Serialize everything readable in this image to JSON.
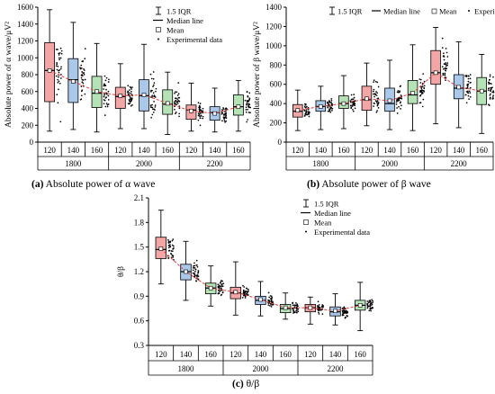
{
  "captions": {
    "a": {
      "tag": "(a)",
      "text": "Absolute power of α wave"
    },
    "b": {
      "tag": "(b)",
      "text": "Absolute power of β wave"
    },
    "c": {
      "tag": "(c)",
      "text": "θ/β"
    }
  },
  "legend": {
    "iqr": "1.5 IQR",
    "median": "Median line",
    "mean": "Mean",
    "data": "Experimental data"
  },
  "colors": {
    "red": "#f4a6a6",
    "blue": "#a9c8ea",
    "green": "#b6e3b6",
    "trend": "#e83a3a"
  },
  "chart_data": [
    {
      "id": "a",
      "type": "box",
      "ylabel": "Absolute power of α wave/μV²",
      "ylim": [
        0,
        1600
      ],
      "yticks": [
        0,
        200,
        400,
        600,
        800,
        1000,
        1200,
        1400,
        1600
      ],
      "groups": [
        "1800",
        "2000",
        "2200"
      ],
      "subgroups": [
        "120",
        "140",
        "160"
      ],
      "boxes": [
        {
          "group": "1800",
          "sub": "120",
          "color": "red",
          "wlow": 130,
          "q1": 480,
          "median": 850,
          "q3": 1180,
          "whigh": 1570,
          "mean": 850
        },
        {
          "group": "1800",
          "sub": "140",
          "color": "blue",
          "wlow": 150,
          "q1": 470,
          "median": 740,
          "q3": 990,
          "whigh": 1420,
          "mean": 720
        },
        {
          "group": "1800",
          "sub": "160",
          "color": "green",
          "wlow": 120,
          "q1": 410,
          "median": 580,
          "q3": 780,
          "whigh": 1170,
          "mean": 600
        },
        {
          "group": "2000",
          "sub": "120",
          "color": "red",
          "wlow": 160,
          "q1": 400,
          "median": 540,
          "q3": 650,
          "whigh": 930,
          "mean": 550
        },
        {
          "group": "2000",
          "sub": "140",
          "color": "blue",
          "wlow": 160,
          "q1": 370,
          "median": 550,
          "q3": 740,
          "whigh": 1160,
          "mean": 560
        },
        {
          "group": "2000",
          "sub": "160",
          "color": "green",
          "wlow": 90,
          "q1": 330,
          "median": 450,
          "q3": 620,
          "whigh": 830,
          "mean": 460
        },
        {
          "group": "2200",
          "sub": "120",
          "color": "red",
          "wlow": 130,
          "q1": 270,
          "median": 380,
          "q3": 440,
          "whigh": 700,
          "mean": 370
        },
        {
          "group": "2200",
          "sub": "140",
          "color": "blue",
          "wlow": 120,
          "q1": 260,
          "median": 350,
          "q3": 420,
          "whigh": 640,
          "mean": 340
        },
        {
          "group": "2200",
          "sub": "160",
          "color": "green",
          "wlow": 130,
          "q1": 320,
          "median": 420,
          "q3": 560,
          "whigh": 730,
          "mean": 420
        }
      ]
    },
    {
      "id": "b",
      "type": "box",
      "ylabel": "Absolute power of β wave/μV²",
      "ylim": [
        0,
        1400
      ],
      "yticks": [
        0,
        200,
        400,
        600,
        800,
        1000,
        1200,
        1400
      ],
      "groups": [
        "1800",
        "2000",
        "2200"
      ],
      "subgroups": [
        "120",
        "140",
        "160"
      ],
      "boxes": [
        {
          "group": "1800",
          "sub": "120",
          "color": "red",
          "wlow": 120,
          "q1": 260,
          "median": 320,
          "q3": 390,
          "whigh": 540,
          "mean": 330
        },
        {
          "group": "1800",
          "sub": "140",
          "color": "blue",
          "wlow": 130,
          "q1": 320,
          "median": 370,
          "q3": 430,
          "whigh": 580,
          "mean": 370
        },
        {
          "group": "1800",
          "sub": "160",
          "color": "green",
          "wlow": 140,
          "q1": 350,
          "median": 400,
          "q3": 480,
          "whigh": 690,
          "mean": 400
        },
        {
          "group": "2000",
          "sub": "120",
          "color": "red",
          "wlow": 170,
          "q1": 330,
          "median": 440,
          "q3": 580,
          "whigh": 820,
          "mean": 450
        },
        {
          "group": "2000",
          "sub": "140",
          "color": "blue",
          "wlow": 130,
          "q1": 320,
          "median": 400,
          "q3": 560,
          "whigh": 850,
          "mean": 430
        },
        {
          "group": "2000",
          "sub": "160",
          "color": "green",
          "wlow": 120,
          "q1": 400,
          "median": 490,
          "q3": 640,
          "whigh": 1010,
          "mean": 510
        },
        {
          "group": "2200",
          "sub": "120",
          "color": "red",
          "wlow": 190,
          "q1": 600,
          "median": 720,
          "q3": 950,
          "whigh": 1190,
          "mean": 720
        },
        {
          "group": "2200",
          "sub": "140",
          "color": "blue",
          "wlow": 150,
          "q1": 450,
          "median": 560,
          "q3": 700,
          "whigh": 1040,
          "mean": 570
        },
        {
          "group": "2200",
          "sub": "160",
          "color": "green",
          "wlow": 90,
          "q1": 390,
          "median": 530,
          "q3": 670,
          "whigh": 910,
          "mean": 530
        }
      ]
    },
    {
      "id": "c",
      "type": "box",
      "ylabel": "θ/β",
      "ylim": [
        0.3,
        2.1
      ],
      "yticks": [
        0.3,
        0.6,
        0.9,
        1.2,
        1.5,
        1.8,
        2.1
      ],
      "groups": [
        "1800",
        "2000",
        "2200"
      ],
      "subgroups": [
        "120",
        "140",
        "160"
      ],
      "boxes": [
        {
          "group": "1800",
          "sub": "120",
          "color": "red",
          "wlow": 1.05,
          "q1": 1.36,
          "median": 1.47,
          "q3": 1.62,
          "whigh": 1.95,
          "mean": 1.48
        },
        {
          "group": "1800",
          "sub": "140",
          "color": "blue",
          "wlow": 0.85,
          "q1": 1.1,
          "median": 1.2,
          "q3": 1.29,
          "whigh": 1.57,
          "mean": 1.2
        },
        {
          "group": "1800",
          "sub": "160",
          "color": "green",
          "wlow": 0.78,
          "q1": 0.93,
          "median": 1.0,
          "q3": 1.06,
          "whigh": 1.27,
          "mean": 1.0
        },
        {
          "group": "2000",
          "sub": "120",
          "color": "red",
          "wlow": 0.67,
          "q1": 0.87,
          "median": 0.94,
          "q3": 1.01,
          "whigh": 1.32,
          "mean": 0.95
        },
        {
          "group": "2000",
          "sub": "140",
          "color": "blue",
          "wlow": 0.66,
          "q1": 0.8,
          "median": 0.85,
          "q3": 0.9,
          "whigh": 1.08,
          "mean": 0.86
        },
        {
          "group": "2000",
          "sub": "160",
          "color": "green",
          "wlow": 0.62,
          "q1": 0.7,
          "median": 0.75,
          "q3": 0.8,
          "whigh": 0.94,
          "mean": 0.76
        },
        {
          "group": "2200",
          "sub": "120",
          "color": "red",
          "wlow": 0.56,
          "q1": 0.71,
          "median": 0.76,
          "q3": 0.8,
          "whigh": 0.89,
          "mean": 0.76
        },
        {
          "group": "2200",
          "sub": "140",
          "color": "blue",
          "wlow": 0.55,
          "q1": 0.66,
          "median": 0.71,
          "q3": 0.77,
          "whigh": 0.93,
          "mean": 0.72
        },
        {
          "group": "2200",
          "sub": "160",
          "color": "green",
          "wlow": 0.48,
          "q1": 0.73,
          "median": 0.79,
          "q3": 0.85,
          "whigh": 1.07,
          "mean": 0.79
        }
      ]
    }
  ]
}
